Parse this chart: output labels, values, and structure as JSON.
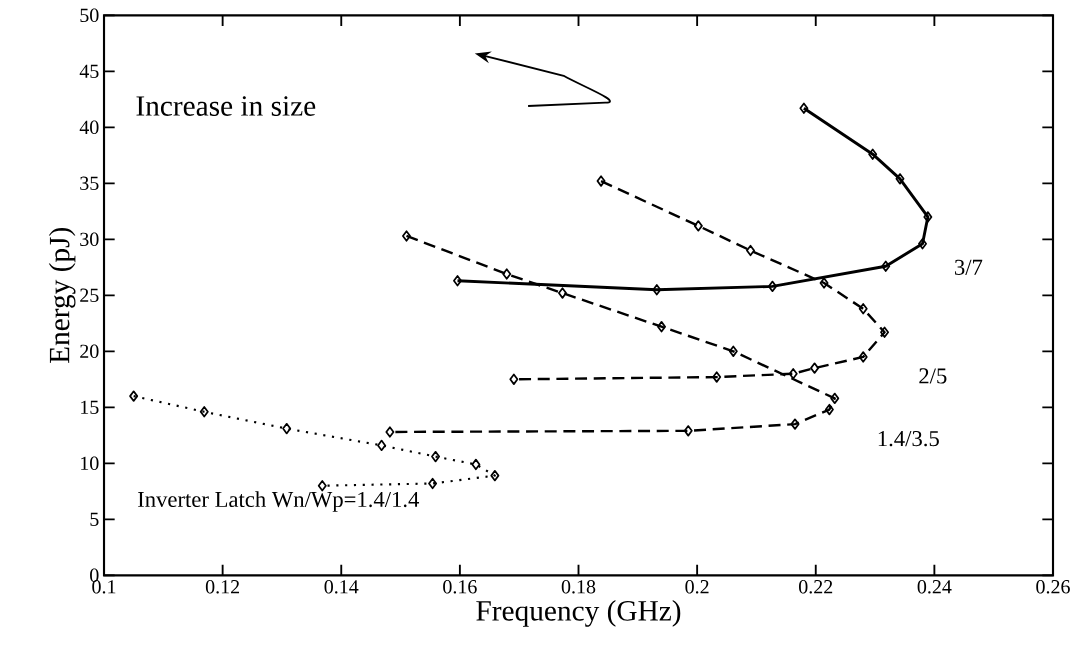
{
  "chart_data": {
    "type": "line",
    "xlabel": "Frequency (GHz)",
    "ylabel": "Energy (pJ)",
    "annotations": [
      "Increase in size"
    ],
    "xlim": [
      0.1,
      0.26
    ],
    "ylim": [
      0,
      50
    ],
    "xticks": [
      0.1,
      0.12,
      0.14,
      0.16,
      0.18,
      0.2,
      0.22,
      0.24,
      0.26
    ],
    "yticks": [
      0,
      5,
      10,
      15,
      20,
      25,
      30,
      35,
      40,
      45,
      50
    ],
    "marker": "diamond",
    "grid": false,
    "series": [
      {
        "name": "3/7",
        "color": "#000000",
        "line_style": "solid",
        "x": [
          0.1596,
          0.1932,
          0.2127,
          0.2318,
          0.238,
          0.2389,
          0.2342,
          0.2296,
          0.218
        ],
        "values": [
          26.3,
          25.5,
          25.8,
          27.6,
          29.6,
          32.0,
          35.4,
          37.6,
          41.7
        ]
      },
      {
        "name": "2/5",
        "color": "#000000",
        "line_style": "dashed",
        "x": [
          0.1838,
          0.2002,
          0.209,
          0.2214,
          0.228,
          0.2316,
          0.228,
          0.2198,
          0.2162,
          0.2033,
          0.1691
        ],
        "values": [
          35.2,
          31.2,
          29.0,
          26.1,
          23.8,
          21.7,
          19.5,
          18.5,
          18.0,
          17.7,
          17.5
        ]
      },
      {
        "name": "1.4/3.5",
        "color": "#000000",
        "line_style": "dashed",
        "x": [
          0.151,
          0.1679,
          0.1773,
          0.194,
          0.2061,
          0.2232,
          0.2223,
          0.2165,
          0.1985,
          0.1482
        ],
        "values": [
          30.3,
          26.9,
          25.2,
          22.2,
          20.0,
          15.8,
          14.8,
          13.5,
          12.9,
          12.8
        ]
      },
      {
        "name": "Inverter Latch Wn/Wp=1.4/1.4",
        "color": "#000000",
        "line_style": "dotted",
        "x": [
          0.105,
          0.1169,
          0.1308,
          0.1468,
          0.1559,
          0.1627,
          0.1659,
          0.1554,
          0.1368
        ],
        "values": [
          16.0,
          14.6,
          13.1,
          11.6,
          10.6,
          9.9,
          8.9,
          8.2,
          8.0
        ]
      }
    ]
  }
}
